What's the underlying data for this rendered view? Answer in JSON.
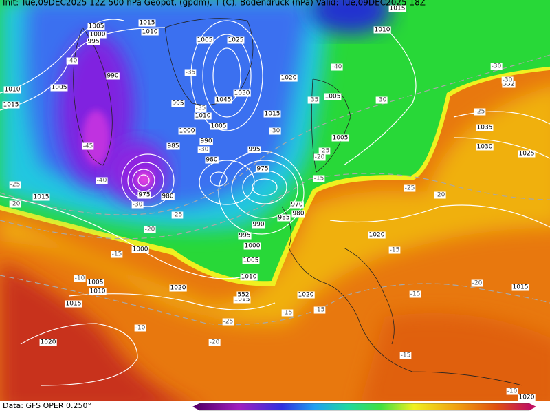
{
  "header": "Init: Tue,09DEC2025 12Z   500 hPa Geopot. (gpdm), T (C), Bodendruck (hPa)   Valid: Tue,09DEC2025 18Z",
  "footer": "Data: GFS OPER 0.250°",
  "isobar_labels": [
    1005,
    1000,
    995,
    1015,
    1010,
    1005,
    1025,
    1010,
    1015,
    990,
    1005,
    1010,
    1015,
    995,
    1045,
    1030,
    1010,
    1005,
    1000,
    1020,
    1015,
    1005,
    985,
    990,
    995,
    980,
    975,
    975,
    980,
    970,
    980,
    985,
    990,
    995,
    1000,
    1005,
    1010,
    1015,
    1000,
    1005,
    1010,
    1015,
    1020,
    1020,
    1020,
    1005,
    1035,
    1030,
    1025,
    1015,
    1020,
    1015,
    1020,
    552,
    552
  ],
  "temperature_labels": [
    -40,
    -35,
    -45,
    -40,
    -30,
    -25,
    -20,
    -25,
    -20,
    -15,
    -10,
    -30,
    -35,
    -30,
    -35,
    -30,
    -40,
    -30,
    -30,
    -25,
    -25,
    -20,
    -15,
    -25,
    -20,
    -15,
    -15,
    -15,
    -15,
    -25,
    -20,
    -10,
    -15,
    -20,
    -10
  ]
}
